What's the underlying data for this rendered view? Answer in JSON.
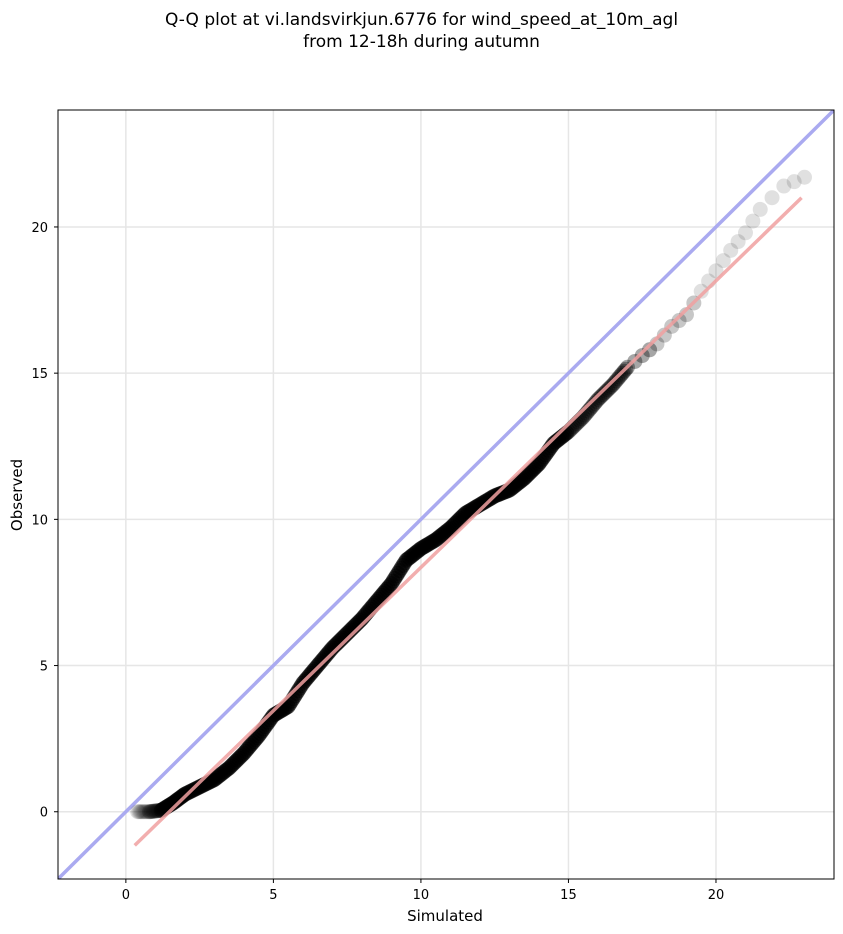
{
  "chart_data": {
    "type": "scatter",
    "title": "Q-Q plot at vi.landsvirkjun.6776 for wind_speed_at_10m_agl",
    "subtitle": "from 12-18h during autumn",
    "xlabel": "Simulated",
    "ylabel": "Observed",
    "xlim": [
      -2.3,
      24.0
    ],
    "ylim": [
      -2.3,
      24.0
    ],
    "xticks": [
      0,
      5,
      10,
      15,
      20
    ],
    "yticks": [
      0,
      5,
      10,
      15,
      20
    ],
    "grid": true,
    "legend": "none",
    "quantile_anchors": {
      "x": [
        0.4,
        0.8,
        1.2,
        1.6,
        2.0,
        2.5,
        3.0,
        3.5,
        4.0,
        4.5,
        5.0,
        5.5,
        6.0,
        6.5,
        7.0,
        7.5,
        8.0,
        8.5,
        9.0,
        9.5,
        10.0,
        10.5,
        11.0,
        11.5,
        12.0,
        12.5,
        13.0,
        13.5,
        14.0,
        14.5,
        15.0,
        15.5,
        16.0,
        16.5,
        17.0,
        17.5,
        18.0,
        18.5,
        19.0,
        19.5,
        20.0,
        20.5,
        21.0,
        21.5,
        22.3,
        23.0
      ],
      "y": [
        0.0,
        0.0,
        0.05,
        0.3,
        0.6,
        0.85,
        1.1,
        1.5,
        2.0,
        2.6,
        3.3,
        3.6,
        4.4,
        5.0,
        5.6,
        6.1,
        6.6,
        7.2,
        7.8,
        8.6,
        9.0,
        9.3,
        9.7,
        10.2,
        10.5,
        10.8,
        11.0,
        11.4,
        11.9,
        12.6,
        13.0,
        13.5,
        14.1,
        14.6,
        15.2,
        15.6,
        16.0,
        16.6,
        17.0,
        17.8,
        18.5,
        19.2,
        19.8,
        20.6,
        21.4,
        21.7
      ],
      "points_per_interval": 9
    },
    "reference_line": {
      "name": "1:1",
      "color": "#aaaaf0",
      "x": [
        -2.3,
        24.0
      ],
      "y": [
        -2.3,
        24.0
      ]
    },
    "fit_line": {
      "color": "#f0a0a0",
      "x": [
        0.3,
        22.9
      ],
      "y": [
        -1.15,
        21.0
      ]
    },
    "marker_color": "#000000"
  }
}
